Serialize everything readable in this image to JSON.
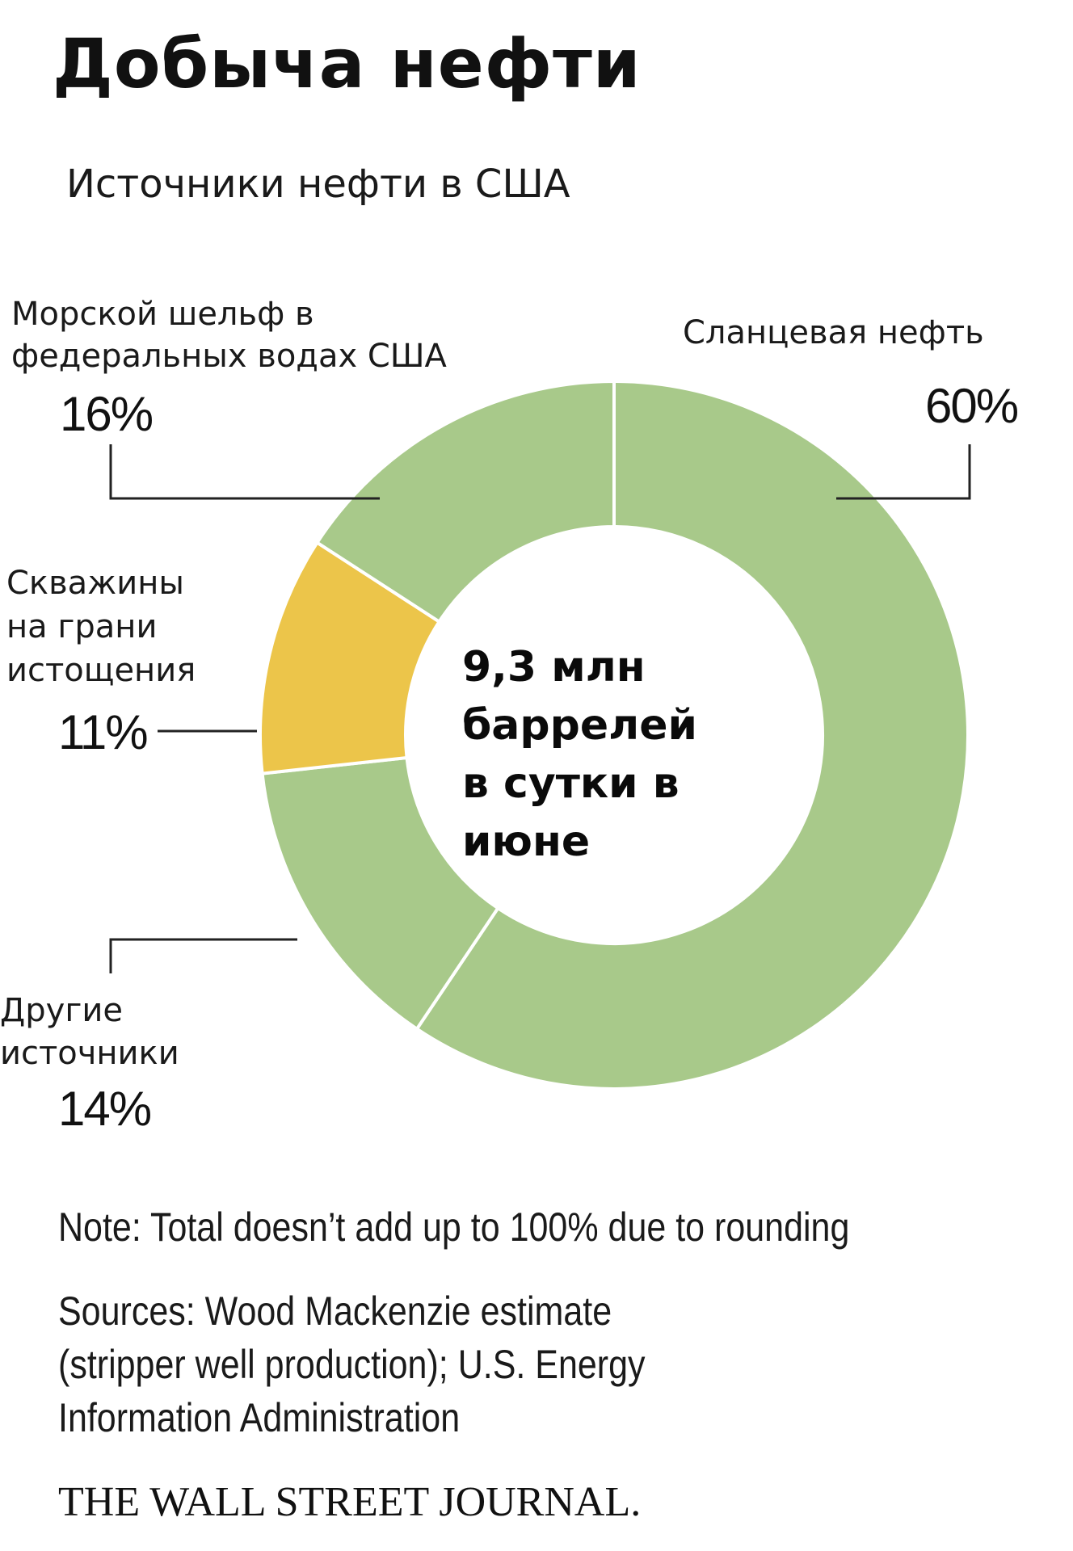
{
  "header": {
    "title": "Добыча нефти",
    "subtitle": "Источники нефти в США"
  },
  "center_label": {
    "line1": "9,3 млн",
    "line2": "баррелей",
    "line3": "в сутки в",
    "line4": "июне"
  },
  "labels": {
    "shale": {
      "line1": "Сланцевая нефть",
      "pct": "60%"
    },
    "offshore": {
      "line1": "Морской шельф в",
      "line2": "федеральных водах США",
      "pct": "16%"
    },
    "stripper": {
      "line1": "Скважины",
      "line2": "на грани",
      "line3": "истощения",
      "pct": "11%"
    },
    "other": {
      "line1": "Другие",
      "line2": "источники",
      "pct": "14%"
    }
  },
  "footer": {
    "note": "Note: Total doesn’t add up to 100% due to rounding",
    "sources_line1": "Sources: Wood Mackenzie estimate",
    "sources_line2": "(stripper well production); U.S. Energy",
    "sources_line3": "Information Administration",
    "publisher": "THE WALL STREET JOURNAL."
  },
  "chart_data": {
    "type": "pie",
    "style": "donut",
    "categories": [
      "Сланцевая нефть",
      "Другие источники",
      "Скважины на грани истощения",
      "Морской шельф в федеральных водах США"
    ],
    "values": [
      60,
      14,
      11,
      16
    ],
    "colors": [
      "#a8c98a",
      "#a8c98a",
      "#ecc54a",
      "#a8c98a"
    ],
    "separator_color": "#ffffff",
    "start": "top",
    "direction": "clockwise"
  }
}
